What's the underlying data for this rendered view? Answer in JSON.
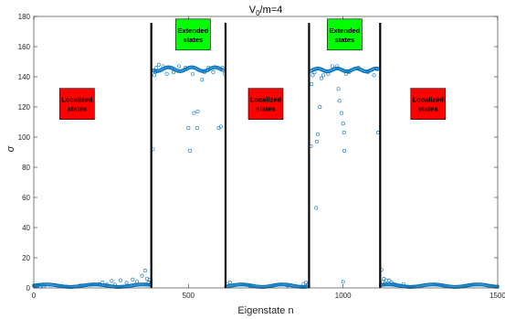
{
  "chart_data": {
    "type": "scatter",
    "title_main": "V",
    "title_sub": "0",
    "title_rest": "/m=4",
    "xlabel": "Eigenstate n",
    "ylabel": "σ",
    "xlim": [
      0,
      1500
    ],
    "ylim": [
      0,
      180
    ],
    "xticks": [
      0,
      500,
      1000,
      1500
    ],
    "yticks": [
      0,
      20,
      40,
      60,
      80,
      100,
      120,
      140,
      160,
      180
    ],
    "grid": false,
    "marker": "open-circle",
    "series_color": "#0072BD",
    "divider_color": "#000000",
    "dividers_x": [
      380,
      620,
      890,
      1120
    ],
    "regions": [
      {
        "label_lines": [
          "Localized",
          "states"
        ],
        "color": "#FF0000",
        "x_center": 140,
        "y_center": 122
      },
      {
        "label_lines": [
          "Extended",
          "states"
        ],
        "color": "#00FF00",
        "x_center": 515,
        "y_center": 168
      },
      {
        "label_lines": [
          "Localized",
          "states"
        ],
        "color": "#FF0000",
        "x_center": 750,
        "y_center": 122
      },
      {
        "label_lines": [
          "Extended",
          "states"
        ],
        "color": "#00FF00",
        "x_center": 1005,
        "y_center": 168
      },
      {
        "label_lines": [
          "Localized",
          "states"
        ],
        "color": "#FF0000",
        "x_center": 1275,
        "y_center": 122
      }
    ],
    "bands": [
      {
        "x_start": 0,
        "x_end": 378,
        "y_level": 1.5,
        "wave_amp": 0.8,
        "wave_freq": 25
      },
      {
        "x_start": 622,
        "x_end": 888,
        "y_level": 1.5,
        "wave_amp": 0.8,
        "wave_freq": 21
      },
      {
        "x_start": 1122,
        "x_end": 1500,
        "y_level": 1.5,
        "wave_amp": 0.8,
        "wave_freq": 23
      },
      {
        "x_start": 386,
        "x_end": 612,
        "y_level": 145,
        "wave_amp": 1.3,
        "wave_freq": 12
      },
      {
        "x_start": 896,
        "x_end": 1112,
        "y_level": 144.5,
        "wave_amp": 1.0,
        "wave_freq": 10
      }
    ],
    "points": [
      [
        3,
        0.9
      ],
      [
        12,
        1.3
      ],
      [
        20,
        0.8
      ],
      [
        32,
        1.1
      ],
      [
        150,
        1.6
      ],
      [
        212,
        2.4
      ],
      [
        222,
        3.6
      ],
      [
        236,
        2.2
      ],
      [
        252,
        4.6
      ],
      [
        262,
        2.3
      ],
      [
        280,
        5.1
      ],
      [
        300,
        3.4
      ],
      [
        320,
        5.6
      ],
      [
        334,
        4.2
      ],
      [
        350,
        8.1
      ],
      [
        360,
        11.5
      ],
      [
        366,
        6.1
      ],
      [
        371,
        3.7
      ],
      [
        375,
        5.2
      ],
      [
        378,
        2.6
      ],
      [
        385,
        92
      ],
      [
        390,
        141
      ],
      [
        393,
        143
      ],
      [
        396,
        146
      ],
      [
        404,
        148
      ],
      [
        418,
        147
      ],
      [
        430,
        142
      ],
      [
        452,
        143
      ],
      [
        470,
        147
      ],
      [
        490,
        146
      ],
      [
        500,
        106
      ],
      [
        505,
        91
      ],
      [
        514,
        142
      ],
      [
        518,
        116
      ],
      [
        528,
        106
      ],
      [
        530,
        117
      ],
      [
        544,
        138
      ],
      [
        552,
        143
      ],
      [
        565,
        146
      ],
      [
        580,
        143
      ],
      [
        598,
        106
      ],
      [
        605,
        107
      ],
      [
        610,
        146
      ],
      [
        617,
        142
      ],
      [
        625,
        2.6
      ],
      [
        634,
        3.6
      ],
      [
        646,
        1.8
      ],
      [
        700,
        1.2
      ],
      [
        820,
        1.6
      ],
      [
        872,
        2.7
      ],
      [
        880,
        3.5
      ],
      [
        886,
        2.1
      ],
      [
        896,
        94
      ],
      [
        898,
        135
      ],
      [
        902,
        141
      ],
      [
        908,
        143
      ],
      [
        913,
        53
      ],
      [
        916,
        97
      ],
      [
        918,
        102
      ],
      [
        925,
        120
      ],
      [
        930,
        139
      ],
      [
        936,
        141
      ],
      [
        952,
        142
      ],
      [
        965,
        147
      ],
      [
        972,
        163
      ],
      [
        980,
        147
      ],
      [
        985,
        132
      ],
      [
        988,
        124
      ],
      [
        995,
        116
      ],
      [
        1000,
        109
      ],
      [
        1003,
        103
      ],
      [
        1004,
        91
      ],
      [
        1010,
        142
      ],
      [
        1020,
        143
      ],
      [
        1050,
        146
      ],
      [
        1080,
        143
      ],
      [
        1100,
        141
      ],
      [
        1110,
        145
      ],
      [
        1113,
        103
      ],
      [
        1124,
        12
      ],
      [
        1128,
        4
      ],
      [
        1132,
        6
      ],
      [
        1140,
        5
      ],
      [
        1150,
        5
      ],
      [
        1156,
        3.6
      ],
      [
        1162,
        2.6
      ],
      [
        1170,
        2.2
      ],
      [
        1180,
        1.6
      ],
      [
        1195,
        2.6
      ],
      [
        1000,
        4
      ]
    ]
  }
}
